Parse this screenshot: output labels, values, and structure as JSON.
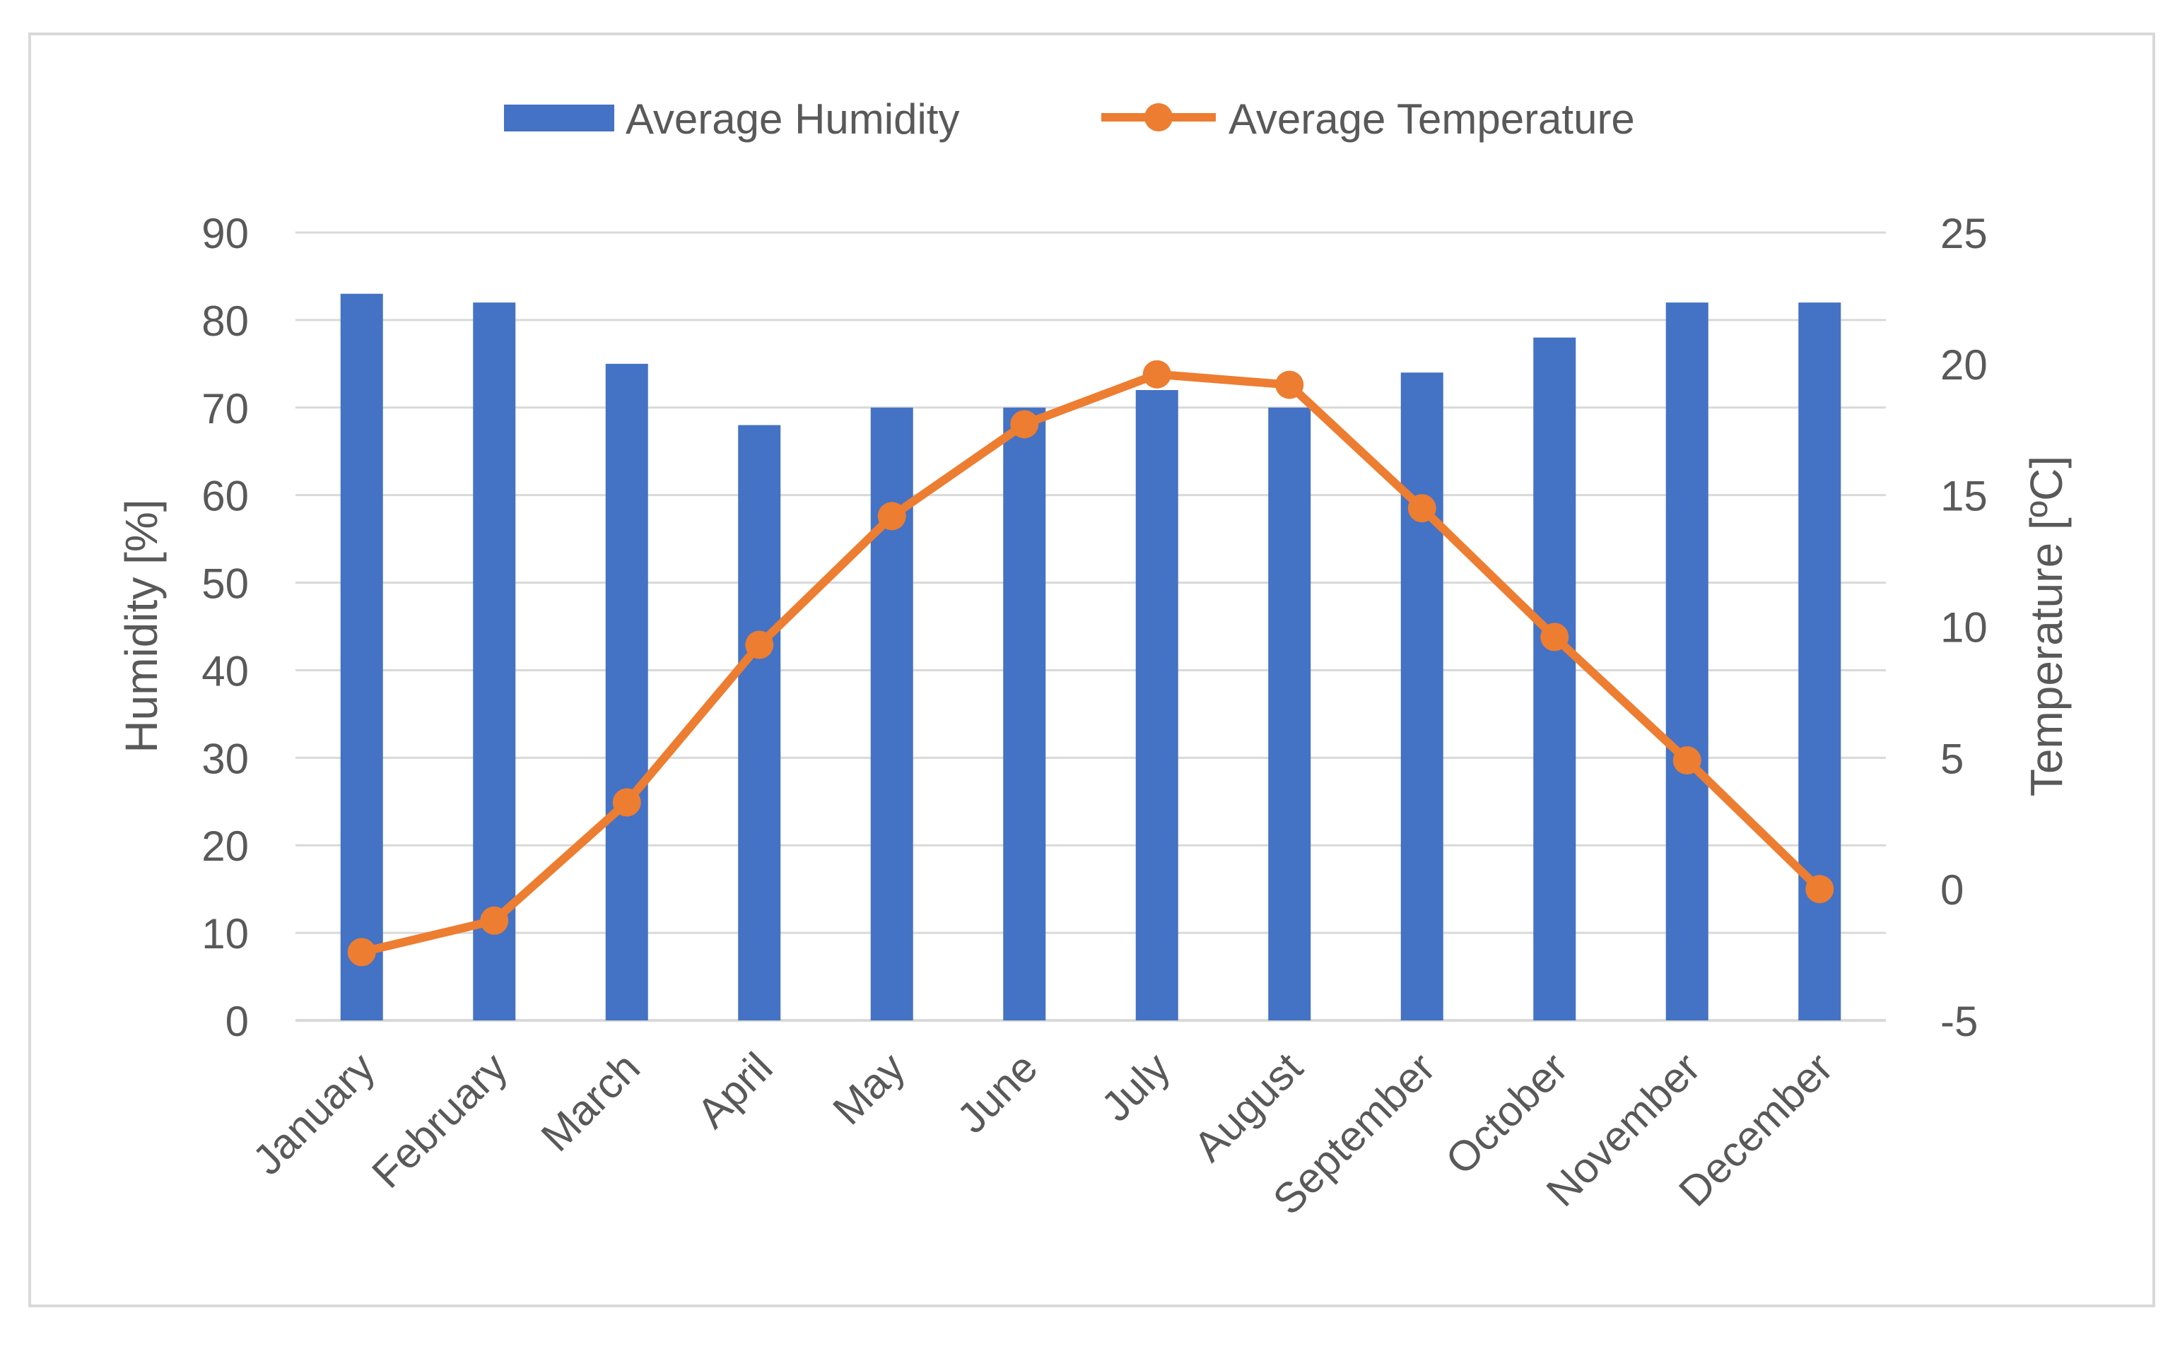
{
  "chart_data": {
    "type": "bar",
    "categories": [
      "January",
      "February",
      "March",
      "April",
      "May",
      "June",
      "July",
      "August",
      "September",
      "October",
      "November",
      "December"
    ],
    "series": [
      {
        "name": "Average Humidity",
        "type": "bar",
        "axis": "left",
        "color": "#4472C4",
        "values": [
          83,
          82,
          75,
          68,
          70,
          70,
          72,
          70,
          74,
          78,
          82,
          82
        ]
      },
      {
        "name": "Average Temperature",
        "type": "line",
        "axis": "right",
        "color": "#ED7D31",
        "marker": "circle",
        "values": [
          -2.4,
          -1.2,
          3.3,
          9.3,
          14.2,
          17.7,
          19.6,
          19.2,
          14.5,
          9.6,
          4.9,
          0.0
        ]
      }
    ],
    "title": "",
    "xlabel": "",
    "ylabel": "Humidity [%]",
    "y2label": "Temperature [ºC]",
    "ylim": [
      0,
      90
    ],
    "y2lim": [
      -5,
      25
    ],
    "yticks": [
      "0",
      "10",
      "20",
      "30",
      "40",
      "50",
      "60",
      "70",
      "80",
      "90"
    ],
    "y2ticks": [
      "-5",
      "0",
      "5",
      "10",
      "15",
      "20",
      "25"
    ],
    "grid": true,
    "legend_position": "top"
  }
}
